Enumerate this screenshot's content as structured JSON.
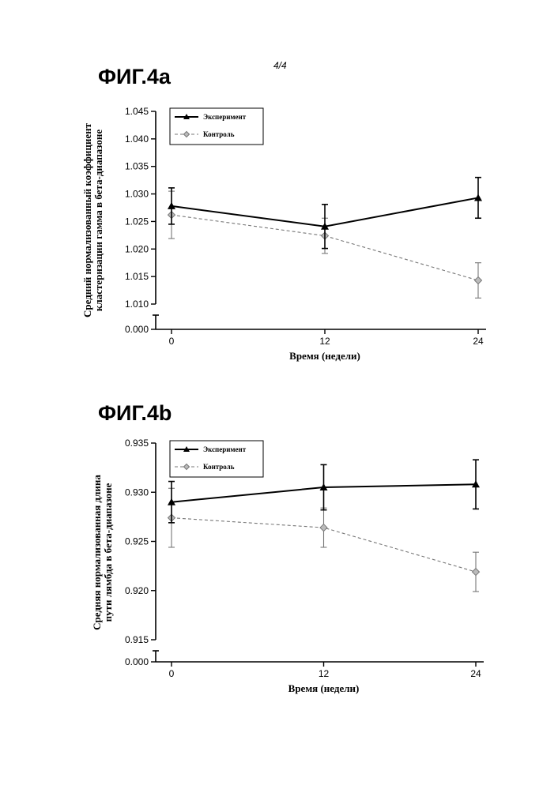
{
  "page": {
    "page_number": "4/4"
  },
  "chart_data": [
    {
      "id": "fig4a",
      "type": "line",
      "title": "ФИГ.4a",
      "xlabel": "Время (недели)",
      "ylabel_lines": [
        "Средний нормализованный коэффициент",
        "кластеризации гамма в бета-диапазоне"
      ],
      "x": [
        0,
        12,
        24
      ],
      "x_ticks": [
        "0",
        "12",
        "24"
      ],
      "xlim": [
        0,
        24
      ],
      "y_ticks": [
        "1.045",
        "1.040",
        "1.035",
        "1.030",
        "1.025",
        "1.020",
        "1.015",
        "1.010",
        "0.000"
      ],
      "y_tick_values": [
        1.045,
        1.04,
        1.035,
        1.03,
        1.025,
        1.02,
        1.015,
        1.01
      ],
      "ylim": [
        1.01,
        1.045
      ],
      "y_axis_break": true,
      "y_break_tick": "0.000",
      "grid": false,
      "legend_position": "top-left",
      "series": [
        {
          "name": "Эксперимент",
          "values": [
            1.0278,
            1.0241,
            1.0293
          ],
          "errors": [
            0.0033,
            0.004,
            0.0037
          ],
          "color": "#000000",
          "marker": "triangle",
          "line_style": "solid"
        },
        {
          "name": "Контроль",
          "values": [
            1.0262,
            1.0224,
            1.0143
          ],
          "errors": [
            0.0043,
            0.0032,
            0.0032
          ],
          "color": "#777777",
          "marker": "diamond",
          "line_style": "dashed"
        }
      ]
    },
    {
      "id": "fig4b",
      "type": "line",
      "title": "ФИГ.4b",
      "xlabel": "Время (недели)",
      "ylabel_lines": [
        "Средняя нормализованная длина",
        "пути лямбда в бета-диапазоне"
      ],
      "x": [
        0,
        12,
        24
      ],
      "x_ticks": [
        "0",
        "12",
        "24"
      ],
      "xlim": [
        0,
        24
      ],
      "y_ticks": [
        "0.935",
        "0.930",
        "0.925",
        "0.920",
        "0.915",
        "0.000"
      ],
      "y_tick_values": [
        0.935,
        0.93,
        0.925,
        0.92,
        0.915
      ],
      "ylim": [
        0.915,
        0.935
      ],
      "y_axis_break": true,
      "y_break_tick": "0.000",
      "grid": false,
      "legend_position": "top-left",
      "series": [
        {
          "name": "Эксперимент",
          "values": [
            0.929,
            0.9305,
            0.9308
          ],
          "errors": [
            0.0021,
            0.0023,
            0.0025
          ],
          "color": "#000000",
          "marker": "triangle",
          "line_style": "solid"
        },
        {
          "name": "Контроль",
          "values": [
            0.9274,
            0.9264,
            0.9219
          ],
          "errors": [
            0.003,
            0.002,
            0.002
          ],
          "color": "#777777",
          "marker": "diamond",
          "line_style": "dashed"
        }
      ]
    }
  ]
}
